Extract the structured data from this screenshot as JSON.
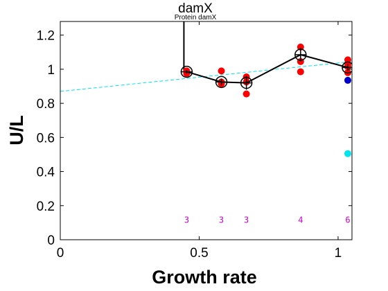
{
  "chart_data": {
    "type": "scatter",
    "title": "damX",
    "subtitle": "Protein damX",
    "xlabel": "Growth rate",
    "ylabel": "U/L",
    "xlim": [
      0,
      1.05
    ],
    "ylim": [
      0,
      1.28
    ],
    "xticks": [
      0,
      0.5,
      1
    ],
    "yticks": [
      0,
      0.2,
      0.4,
      0.6,
      0.8,
      1,
      1.2
    ],
    "grid": false,
    "colors": {
      "replicate": "#ff0000",
      "mean_line": "#000000",
      "fit": "#00e5ee",
      "extra_blue": "#0000cc",
      "extra_cyan": "#00e5ee",
      "count": "#cc00cc"
    },
    "series": [
      {
        "kind": "replicates",
        "points": [
          [
            0.455,
            0.99
          ],
          [
            0.455,
            0.975
          ],
          [
            0.58,
            0.99
          ],
          [
            0.58,
            0.925
          ],
          [
            0.58,
            0.915
          ],
          [
            0.67,
            0.955
          ],
          [
            0.67,
            0.925
          ],
          [
            0.67,
            0.855
          ],
          [
            0.865,
            1.13
          ],
          [
            0.865,
            1.045
          ],
          [
            0.865,
            0.985
          ],
          [
            1.035,
            1.055
          ],
          [
            1.035,
            1.03
          ],
          [
            1.035,
            1.015
          ],
          [
            1.035,
            0.98
          ]
        ]
      },
      {
        "kind": "mean",
        "x": [
          0.455,
          0.58,
          0.67,
          0.865,
          1.035
        ],
        "y": [
          0.985,
          0.925,
          0.92,
          1.085,
          1.01
        ],
        "err": [
          0.01,
          0.02,
          0.04,
          0.04,
          0.02
        ]
      }
    ],
    "spike": {
      "x": 0.445,
      "y_from": 0.985,
      "y_to": 1.28
    },
    "fit_line": {
      "x": [
        0,
        1.05
      ],
      "y": [
        0.87,
        1.045
      ]
    },
    "extra_points": [
      {
        "x": 1.035,
        "y": 0.935,
        "color": "blue"
      },
      {
        "x": 1.035,
        "y": 0.505,
        "color": "cyan"
      }
    ],
    "counts": [
      {
        "x": 0.455,
        "label": "3"
      },
      {
        "x": 0.58,
        "label": "3"
      },
      {
        "x": 0.67,
        "label": "3"
      },
      {
        "x": 0.865,
        "label": "4"
      },
      {
        "x": 1.035,
        "label": "6"
      }
    ],
    "count_y": 0.115
  }
}
